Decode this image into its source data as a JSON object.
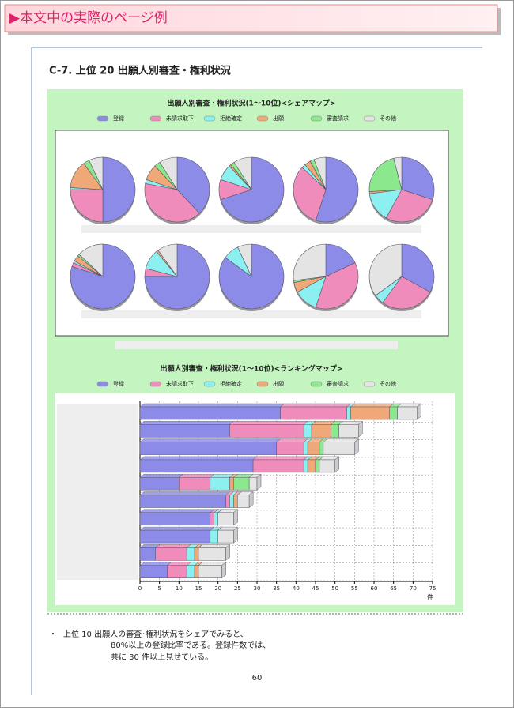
{
  "header": {
    "title": "▶本文中の実際のページ例"
  },
  "section": {
    "title": "C-7.  上位 20 出願人別審査・権利状況"
  },
  "chart_data": [
    {
      "type": "pie",
      "title": "出願人別審査・権利状況(1～10位)<シェアマップ>",
      "categories": [
        "登録",
        "未請求取下",
        "拒絶確定",
        "出願",
        "審査請求",
        "その他"
      ],
      "colors": [
        "#8c8ce8",
        "#f08cbc",
        "#8cf0f0",
        "#f0a878",
        "#8ce88c",
        "#e4e4e4"
      ],
      "pies": [
        [
          50,
          25,
          1,
          14,
          3,
          7
        ],
        [
          38,
          40,
          2,
          8,
          3,
          9
        ],
        [
          70,
          10,
          8,
          1,
          2,
          9
        ],
        [
          55,
          32,
          2,
          3,
          2,
          6
        ],
        [
          30,
          28,
          15,
          1,
          22,
          4
        ],
        [
          80,
          2,
          1,
          3,
          1,
          13
        ],
        [
          75,
          4,
          10,
          1,
          0,
          10
        ],
        [
          85,
          0,
          8,
          0,
          0,
          7
        ],
        [
          18,
          37,
          12,
          5,
          1,
          27
        ],
        [
          33,
          27,
          5,
          0,
          0,
          35
        ]
      ]
    },
    {
      "type": "bar",
      "orientation": "horizontal",
      "stacked": true,
      "title": "出願人別審査・権利状況(1～10位)<ランキングマップ>",
      "x_label": "件",
      "xlim": [
        0,
        75
      ],
      "xticks": [
        0,
        5,
        10,
        15,
        20,
        25,
        30,
        35,
        40,
        45,
        50,
        55,
        60,
        65,
        70,
        75
      ],
      "grid": true,
      "series": [
        {
          "name": "登録",
          "color": "#8c8ce8",
          "values": [
            36,
            23,
            35,
            29,
            10,
            22,
            18,
            18,
            4,
            7
          ]
        },
        {
          "name": "未請求取下",
          "color": "#f08cbc",
          "values": [
            17,
            19,
            7,
            13,
            8,
            1,
            1,
            0,
            8,
            5
          ]
        },
        {
          "name": "拒絶確定",
          "color": "#8cf0f0",
          "values": [
            1,
            2,
            1,
            1,
            5,
            1,
            1,
            2,
            2,
            2
          ]
        },
        {
          "name": "出願",
          "color": "#f0a878",
          "values": [
            10,
            5,
            3,
            2,
            1,
            1,
            0,
            0,
            1,
            1
          ]
        },
        {
          "name": "審査請求",
          "color": "#8ce88c",
          "values": [
            2,
            2,
            1,
            1,
            4,
            0,
            0,
            0,
            0,
            0
          ]
        },
        {
          "name": "その他",
          "color": "#e4e4e4",
          "values": [
            5,
            5,
            8,
            4,
            2,
            3,
            4,
            4,
            7,
            6
          ]
        }
      ]
    }
  ],
  "body": {
    "bullet": "・",
    "lines": [
      "上位 10 出願人の審査･権利状況をシェアでみると、",
      "80%以上の登録比率である。登録件数では、",
      "共に 30 件以上見せている。"
    ]
  },
  "footer": {
    "page": "60"
  }
}
